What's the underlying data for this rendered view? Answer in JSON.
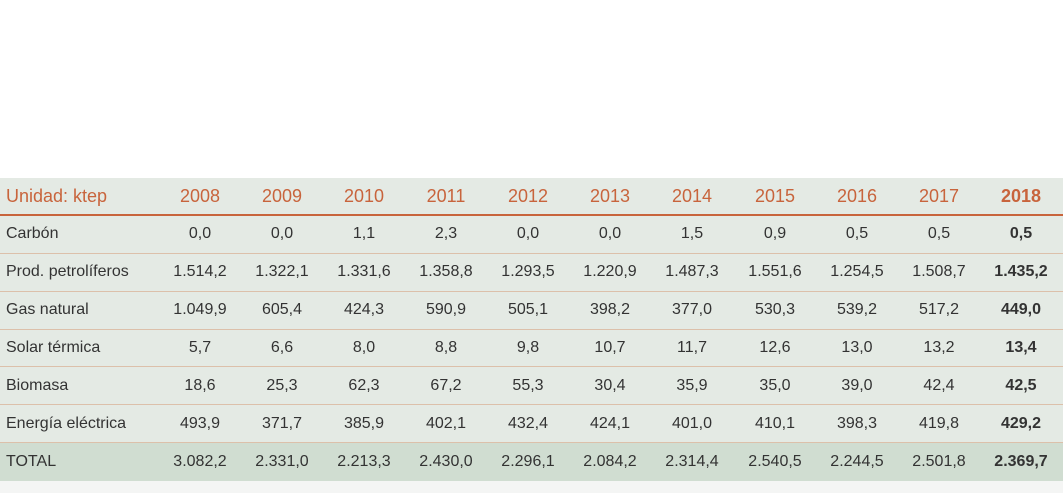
{
  "table": {
    "header": [
      "Unidad: ktep",
      "2008",
      "2009",
      "2010",
      "2011",
      "2012",
      "2013",
      "2014",
      "2015",
      "2016",
      "2017",
      "2018"
    ],
    "rows": [
      [
        "Carbón",
        "0,0",
        "0,0",
        "1,1",
        "2,3",
        "0,0",
        "0,0",
        "1,5",
        "0,9",
        "0,5",
        "0,5",
        "0,5"
      ],
      [
        "Prod. petrolíferos",
        "1.514,2",
        "1.322,1",
        "1.331,6",
        "1.358,8",
        "1.293,5",
        "1.220,9",
        "1.487,3",
        "1.551,6",
        "1.254,5",
        "1.508,7",
        "1.435,2"
      ],
      [
        "Gas natural",
        "1.049,9",
        "605,4",
        "424,3",
        "590,9",
        "505,1",
        "398,2",
        "377,0",
        "530,3",
        "539,2",
        "517,2",
        "449,0"
      ],
      [
        "Solar térmica",
        "5,7",
        "6,6",
        "8,0",
        "8,8",
        "9,8",
        "10,7",
        "11,7",
        "12,6",
        "13,0",
        "13,2",
        "13,4"
      ],
      [
        "Biomasa",
        "18,6",
        "25,3",
        "62,3",
        "67,2",
        "55,3",
        "30,4",
        "35,9",
        "35,0",
        "39,0",
        "42,4",
        "42,5"
      ],
      [
        "Energía eléctrica",
        "493,9",
        "371,7",
        "385,9",
        "402,1",
        "432,4",
        "424,1",
        "401,0",
        "410,1",
        "398,3",
        "419,8",
        "429,2"
      ],
      [
        "TOTAL",
        "3.082,2",
        "2.331,0",
        "2.213,3",
        "2.430,0",
        "2.296,1",
        "2.084,2",
        "2.314,4",
        "2.540,5",
        "2.244,5",
        "2.501,8",
        "2.369,7"
      ]
    ]
  }
}
